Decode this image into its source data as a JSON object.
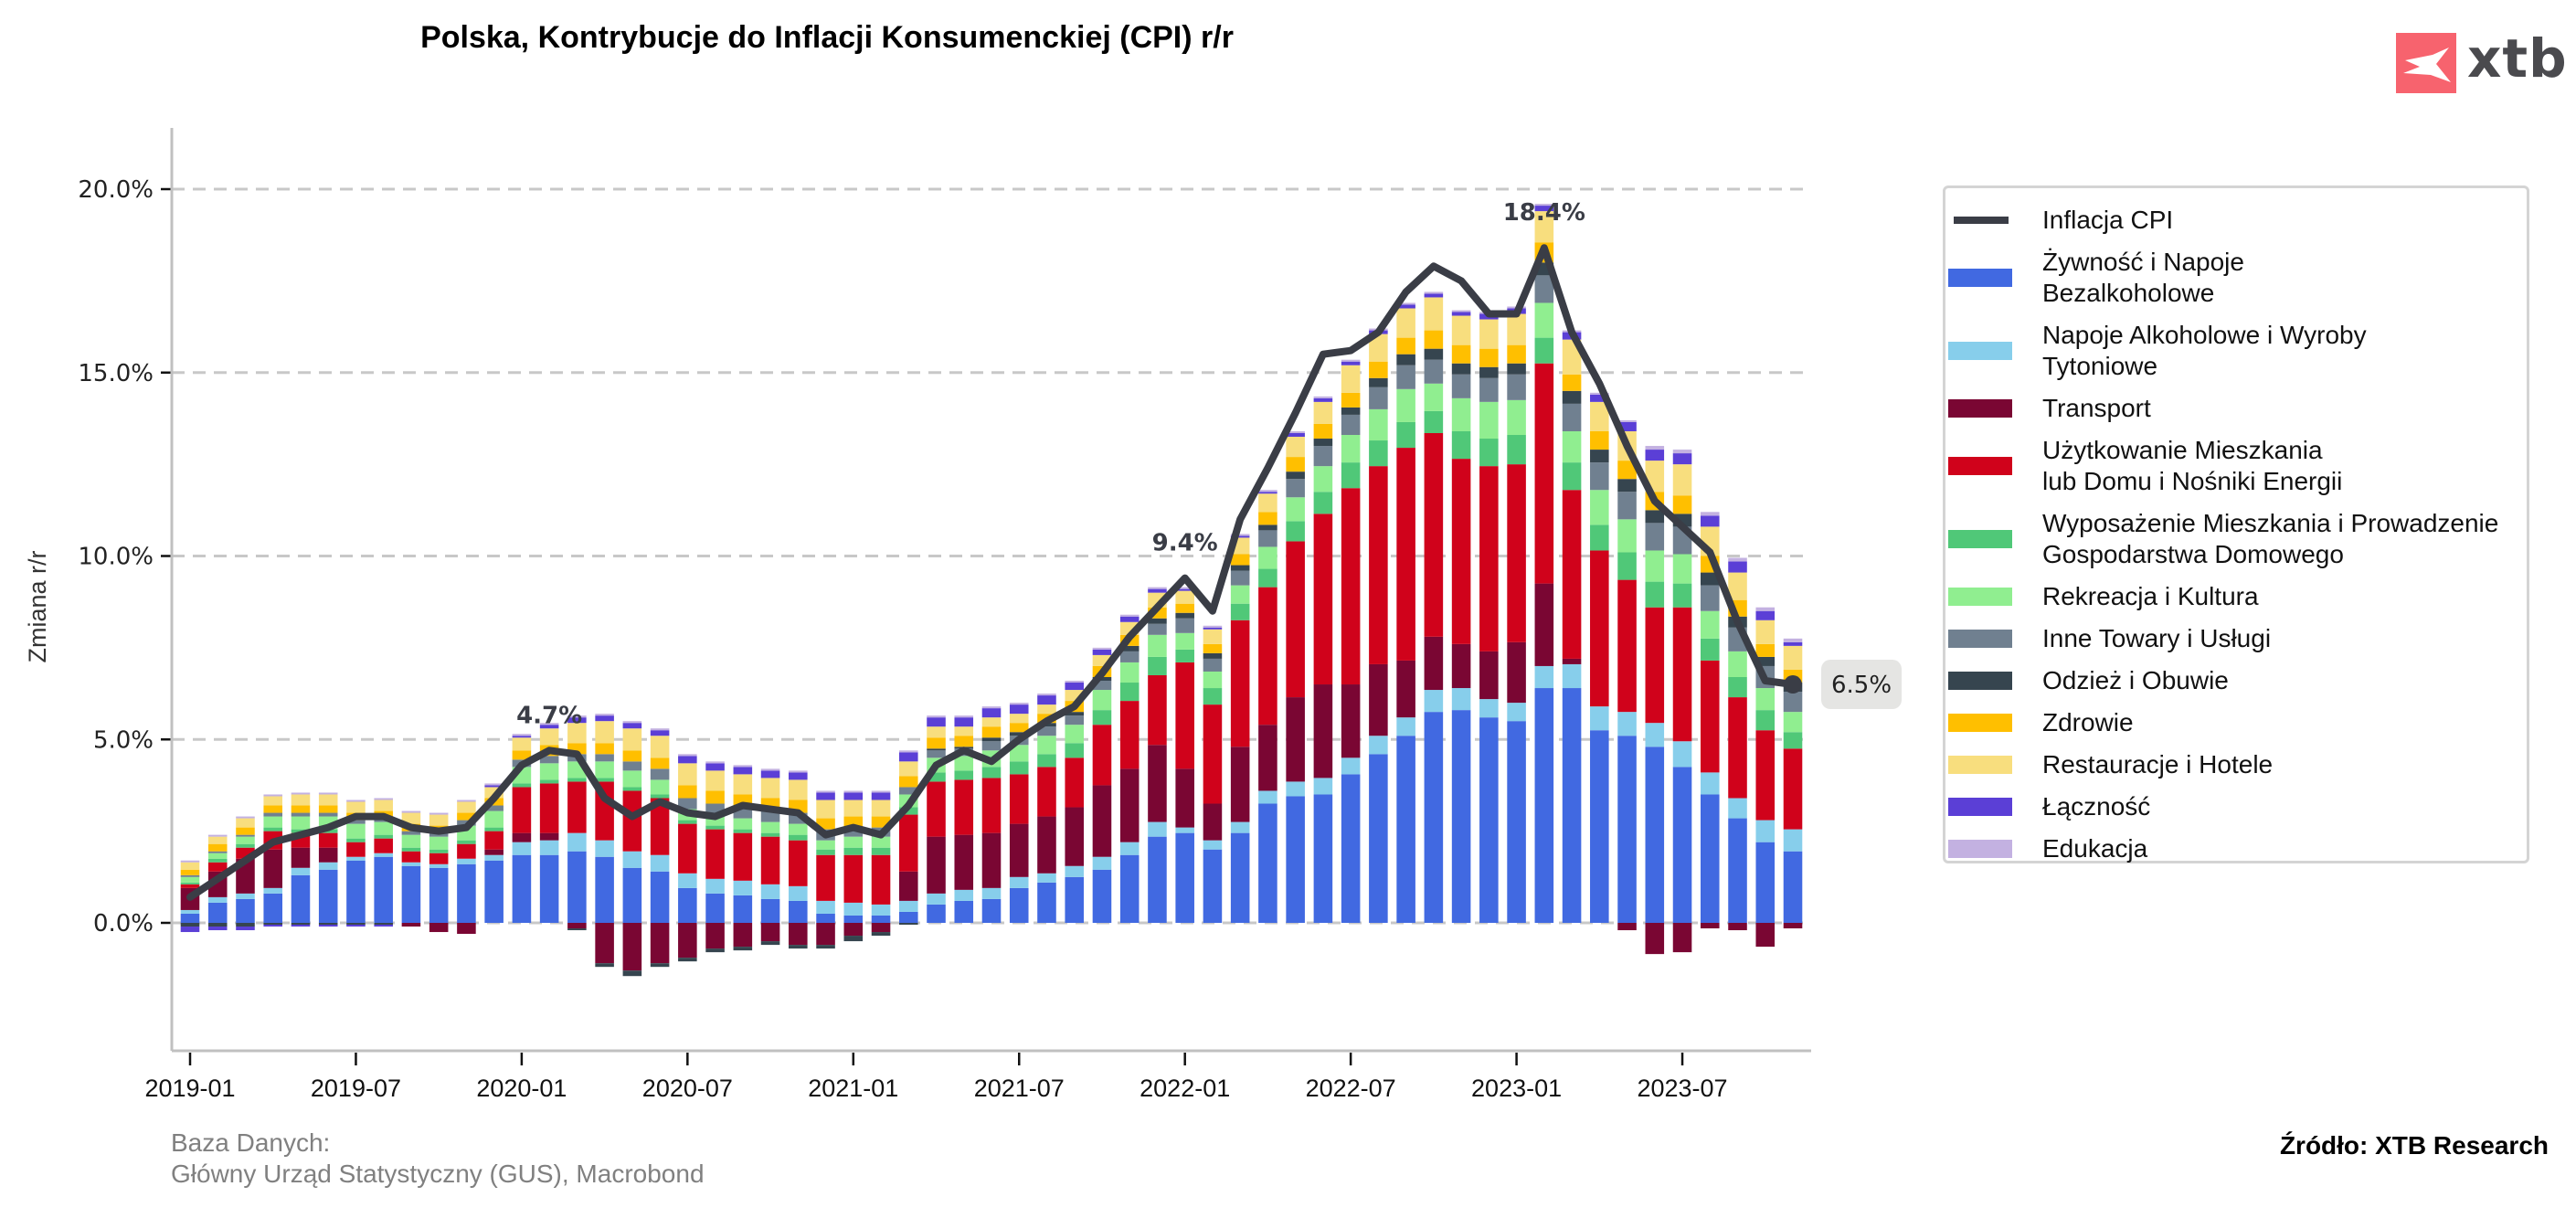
{
  "header": {
    "title": "Polska, Kontrybucje do Inflacji Konsumenckiej (CPI) r/r",
    "logo_text": "xtb"
  },
  "footer": {
    "database_label": "Baza Danych:",
    "database_value": "Główny Urząd Statystyczny (GUS), Macrobond",
    "source": "Źródło: XTB Research"
  },
  "chart_data": {
    "type": "bar",
    "stacked": true,
    "title": "Polska, Kontrybucje do Inflacji Konsumenckiej (CPI) r/r",
    "xlabel": "",
    "ylabel": "Zmiana r/r",
    "ylim": [
      -3.5,
      21.5
    ],
    "yticks": [
      0,
      5,
      10,
      15,
      20
    ],
    "ytick_labels": [
      "0.0%",
      "5.0%",
      "10.0%",
      "15.0%",
      "20.0%"
    ],
    "xtick_labels": [
      "2019-01",
      "2019-07",
      "2020-01",
      "2020-07",
      "2021-01",
      "2021-07",
      "2022-01",
      "2022-07",
      "2023-01",
      "2023-07"
    ],
    "xtick_index": [
      0,
      6,
      12,
      18,
      24,
      30,
      36,
      42,
      48,
      54
    ],
    "grid": "horizontal dashed",
    "legend_position": "right",
    "categories": [
      "2019-01",
      "2019-02",
      "2019-03",
      "2019-04",
      "2019-05",
      "2019-06",
      "2019-07",
      "2019-08",
      "2019-09",
      "2019-10",
      "2019-11",
      "2019-12",
      "2020-01",
      "2020-02",
      "2020-03",
      "2020-04",
      "2020-05",
      "2020-06",
      "2020-07",
      "2020-08",
      "2020-09",
      "2020-10",
      "2020-11",
      "2020-12",
      "2021-01",
      "2021-02",
      "2021-03",
      "2021-04",
      "2021-05",
      "2021-06",
      "2021-07",
      "2021-08",
      "2021-09",
      "2021-10",
      "2021-11",
      "2021-12",
      "2022-01",
      "2022-02",
      "2022-03",
      "2022-04",
      "2022-05",
      "2022-06",
      "2022-07",
      "2022-08",
      "2022-09",
      "2022-10",
      "2022-11",
      "2022-12",
      "2023-01",
      "2023-02",
      "2023-03",
      "2023-04",
      "2023-05",
      "2023-06",
      "2023-07",
      "2023-08",
      "2023-09",
      "2023-10",
      "2023-11"
    ],
    "line": {
      "name": "Inflacja CPI",
      "color": "#3a3d46",
      "values": [
        0.7,
        1.2,
        1.7,
        2.2,
        2.4,
        2.6,
        2.9,
        2.9,
        2.6,
        2.5,
        2.6,
        3.4,
        4.3,
        4.7,
        4.6,
        3.4,
        2.9,
        3.3,
        3.0,
        2.9,
        3.2,
        3.1,
        3.0,
        2.4,
        2.6,
        2.4,
        3.2,
        4.3,
        4.7,
        4.4,
        5.0,
        5.5,
        5.9,
        6.8,
        7.8,
        8.6,
        9.4,
        8.5,
        11.0,
        12.4,
        13.9,
        15.5,
        15.6,
        16.1,
        17.2,
        17.9,
        17.5,
        16.6,
        16.6,
        18.4,
        16.1,
        14.7,
        13.0,
        11.5,
        10.8,
        10.1,
        8.2,
        6.6,
        6.5
      ]
    },
    "annotations": [
      {
        "index": 13,
        "text": "4.7%"
      },
      {
        "index": 36,
        "text": "9.4%"
      },
      {
        "index": 49,
        "text": "18.4%"
      }
    ],
    "last_value_label": "6.5%",
    "series": [
      {
        "name": "Żywność i Napoje\nBezalkoholowe",
        "color": "#4169e1",
        "values": [
          0.25,
          0.55,
          0.65,
          0.8,
          1.3,
          1.45,
          1.7,
          1.8,
          1.55,
          1.5,
          1.6,
          1.7,
          1.85,
          1.85,
          1.95,
          1.8,
          1.5,
          1.4,
          0.95,
          0.8,
          0.75,
          0.65,
          0.6,
          0.25,
          0.2,
          0.2,
          0.3,
          0.5,
          0.6,
          0.65,
          0.95,
          1.1,
          1.25,
          1.45,
          1.85,
          2.35,
          2.45,
          2.0,
          2.45,
          3.25,
          3.45,
          3.5,
          4.05,
          4.6,
          5.1,
          5.75,
          5.8,
          5.6,
          5.5,
          6.4,
          6.4,
          5.25,
          5.1,
          4.8,
          4.25,
          3.5,
          2.85,
          2.2,
          1.95
        ]
      },
      {
        "name": "Napoje Alkoholowe i Wyroby\nTytoniowe",
        "color": "#87ceeb",
        "values": [
          0.1,
          0.15,
          0.15,
          0.15,
          0.2,
          0.2,
          0.1,
          0.1,
          0.1,
          0.1,
          0.15,
          0.15,
          0.35,
          0.4,
          0.5,
          0.45,
          0.45,
          0.45,
          0.4,
          0.4,
          0.4,
          0.4,
          0.4,
          0.35,
          0.35,
          0.3,
          0.3,
          0.3,
          0.3,
          0.3,
          0.3,
          0.25,
          0.3,
          0.35,
          0.35,
          0.4,
          0.15,
          0.25,
          0.3,
          0.35,
          0.4,
          0.45,
          0.45,
          0.5,
          0.5,
          0.6,
          0.6,
          0.5,
          0.5,
          0.6,
          0.65,
          0.65,
          0.65,
          0.65,
          0.7,
          0.6,
          0.55,
          0.6,
          0.6
        ]
      },
      {
        "name": "Transport",
        "color": "#7a0633",
        "values": [
          0.6,
          0.7,
          0.95,
          1.05,
          0.55,
          0.4,
          0.0,
          0.0,
          -0.1,
          -0.25,
          -0.3,
          0.15,
          0.25,
          0.2,
          -0.15,
          -1.1,
          -1.3,
          -1.1,
          -0.95,
          -0.7,
          -0.65,
          -0.5,
          -0.6,
          -0.6,
          -0.35,
          -0.25,
          0.8,
          1.55,
          1.5,
          1.5,
          1.45,
          1.55,
          1.6,
          1.95,
          2.0,
          2.1,
          1.6,
          1.0,
          2.05,
          1.8,
          2.3,
          2.55,
          2.0,
          1.95,
          1.55,
          1.45,
          1.2,
          1.3,
          1.65,
          2.25,
          0.15,
          0.0,
          -0.2,
          -0.85,
          -0.8,
          -0.15,
          -0.2,
          -0.65,
          -0.15
        ]
      },
      {
        "name": "Użytkowanie Mieszkania\nlub Domu i Nośniki Energii",
        "color": "#d0021b",
        "values": [
          0.1,
          0.25,
          0.3,
          0.5,
          0.4,
          0.4,
          0.4,
          0.4,
          0.3,
          0.3,
          0.4,
          0.5,
          1.25,
          1.35,
          1.4,
          1.6,
          1.65,
          1.55,
          1.35,
          1.35,
          1.3,
          1.3,
          1.25,
          1.25,
          1.3,
          1.35,
          1.55,
          1.5,
          1.5,
          1.5,
          1.35,
          1.35,
          1.35,
          1.65,
          1.85,
          1.9,
          2.9,
          2.7,
          3.45,
          3.75,
          4.25,
          4.65,
          5.35,
          5.4,
          5.8,
          5.55,
          5.05,
          5.05,
          4.85,
          6.0,
          4.6,
          4.25,
          3.6,
          3.15,
          3.65,
          3.05,
          2.75,
          2.45,
          2.2
        ]
      },
      {
        "name": "Wyposażenie Mieszkania i Prowadzenie\nGospodarstwa Domowego",
        "color": "#50c878",
        "values": [
          0.05,
          0.1,
          0.1,
          0.1,
          0.1,
          0.1,
          0.1,
          0.1,
          0.1,
          0.1,
          0.1,
          0.1,
          0.1,
          0.1,
          0.1,
          0.1,
          0.1,
          0.1,
          0.1,
          0.1,
          0.1,
          0.1,
          0.15,
          0.15,
          0.2,
          0.2,
          0.2,
          0.25,
          0.25,
          0.3,
          0.35,
          0.35,
          0.4,
          0.4,
          0.5,
          0.5,
          0.35,
          0.45,
          0.45,
          0.5,
          0.55,
          0.6,
          0.7,
          0.7,
          0.7,
          0.6,
          0.75,
          0.75,
          0.8,
          0.7,
          0.75,
          0.7,
          0.75,
          0.7,
          0.65,
          0.6,
          0.55,
          0.55,
          0.45
        ]
      },
      {
        "name": "Rekreacja i Kultura",
        "color": "#90ee90",
        "values": [
          0.15,
          0.15,
          0.2,
          0.3,
          0.35,
          0.35,
          0.4,
          0.35,
          0.35,
          0.35,
          0.4,
          0.45,
          0.45,
          0.45,
          0.45,
          0.45,
          0.45,
          0.4,
          0.3,
          0.3,
          0.3,
          0.3,
          0.3,
          0.25,
          0.3,
          0.3,
          0.35,
          0.4,
          0.4,
          0.45,
          0.45,
          0.5,
          0.5,
          0.55,
          0.55,
          0.6,
          0.45,
          0.45,
          0.5,
          0.6,
          0.65,
          0.7,
          0.75,
          0.85,
          0.9,
          0.75,
          0.9,
          1.0,
          0.95,
          0.95,
          0.85,
          0.95,
          0.9,
          0.85,
          0.8,
          0.75,
          0.7,
          0.6,
          0.55
        ]
      },
      {
        "name": "Inne Towary i Usługi",
        "color": "#708090",
        "values": [
          0.05,
          0.05,
          0.05,
          0.1,
          0.1,
          0.1,
          0.1,
          0.1,
          0.1,
          0.1,
          0.15,
          0.15,
          0.2,
          0.2,
          0.2,
          0.2,
          0.25,
          0.3,
          0.3,
          0.3,
          0.3,
          0.3,
          0.3,
          0.3,
          0.25,
          0.25,
          0.2,
          0.2,
          0.2,
          0.25,
          0.25,
          0.25,
          0.25,
          0.25,
          0.3,
          0.3,
          0.4,
          0.35,
          0.4,
          0.45,
          0.5,
          0.55,
          0.55,
          0.6,
          0.65,
          0.65,
          0.65,
          0.65,
          0.7,
          0.75,
          0.75,
          0.75,
          0.75,
          0.75,
          0.75,
          0.7,
          0.65,
          0.6,
          0.55
        ]
      },
      {
        "name": "Odzież i Obuwie",
        "color": "#36454f",
        "values": [
          -0.1,
          -0.1,
          -0.1,
          -0.05,
          -0.05,
          -0.05,
          -0.05,
          -0.05,
          0.0,
          0.0,
          0.0,
          0.0,
          0.0,
          0.0,
          -0.05,
          -0.1,
          -0.15,
          -0.1,
          -0.1,
          -0.1,
          -0.1,
          -0.1,
          -0.1,
          -0.1,
          -0.15,
          -0.1,
          -0.05,
          0.05,
          0.05,
          0.1,
          0.1,
          0.1,
          0.1,
          0.1,
          0.15,
          0.15,
          0.15,
          0.15,
          0.15,
          0.15,
          0.2,
          0.2,
          0.2,
          0.25,
          0.3,
          0.3,
          0.3,
          0.3,
          0.3,
          0.35,
          0.35,
          0.35,
          0.35,
          0.35,
          0.35,
          0.35,
          0.3,
          0.25,
          0.25
        ]
      },
      {
        "name": "Zdrowie",
        "color": "#ffbf00",
        "values": [
          0.15,
          0.2,
          0.2,
          0.2,
          0.2,
          0.2,
          0.2,
          0.2,
          0.2,
          0.2,
          0.2,
          0.2,
          0.25,
          0.3,
          0.3,
          0.3,
          0.3,
          0.3,
          0.35,
          0.35,
          0.35,
          0.35,
          0.35,
          0.3,
          0.3,
          0.3,
          0.3,
          0.3,
          0.3,
          0.3,
          0.25,
          0.25,
          0.3,
          0.3,
          0.3,
          0.3,
          0.25,
          0.25,
          0.3,
          0.35,
          0.4,
          0.4,
          0.4,
          0.45,
          0.45,
          0.5,
          0.5,
          0.5,
          0.5,
          0.55,
          0.45,
          0.5,
          0.5,
          0.5,
          0.5,
          0.45,
          0.45,
          0.35,
          0.35
        ]
      },
      {
        "name": "Restauracje i Hotele",
        "color": "#f8de7e",
        "values": [
          0.2,
          0.2,
          0.25,
          0.25,
          0.3,
          0.3,
          0.3,
          0.3,
          0.3,
          0.3,
          0.3,
          0.3,
          0.35,
          0.45,
          0.55,
          0.6,
          0.6,
          0.6,
          0.6,
          0.55,
          0.55,
          0.55,
          0.55,
          0.5,
          0.45,
          0.45,
          0.4,
          0.3,
          0.25,
          0.25,
          0.25,
          0.25,
          0.3,
          0.3,
          0.35,
          0.4,
          0.35,
          0.4,
          0.45,
          0.5,
          0.55,
          0.6,
          0.75,
          0.75,
          0.8,
          0.9,
          0.8,
          0.8,
          0.85,
          0.85,
          0.95,
          0.8,
          0.8,
          0.85,
          0.85,
          0.8,
          0.75,
          0.65,
          0.65
        ]
      },
      {
        "name": "Łączność",
        "color": "#5b3fd6",
        "values": [
          -0.15,
          -0.1,
          -0.1,
          -0.05,
          -0.05,
          -0.05,
          -0.05,
          -0.05,
          0.0,
          0.0,
          0.0,
          0.05,
          0.05,
          0.1,
          0.15,
          0.15,
          0.15,
          0.15,
          0.2,
          0.2,
          0.2,
          0.2,
          0.2,
          0.2,
          0.2,
          0.2,
          0.25,
          0.25,
          0.25,
          0.25,
          0.25,
          0.25,
          0.2,
          0.15,
          0.15,
          0.1,
          0.05,
          0.05,
          0.05,
          0.05,
          0.1,
          0.1,
          0.1,
          0.1,
          0.1,
          0.1,
          0.1,
          0.15,
          0.15,
          0.15,
          0.2,
          0.2,
          0.25,
          0.3,
          0.3,
          0.3,
          0.3,
          0.25,
          0.1
        ]
      },
      {
        "name": "Edukacja",
        "color": "#c3b1e1",
        "values": [
          0.05,
          0.05,
          0.05,
          0.05,
          0.05,
          0.05,
          0.05,
          0.05,
          0.05,
          0.05,
          0.05,
          0.05,
          0.05,
          0.05,
          0.05,
          0.05,
          0.05,
          0.05,
          0.05,
          0.05,
          0.05,
          0.05,
          0.05,
          0.05,
          0.05,
          0.05,
          0.05,
          0.05,
          0.05,
          0.05,
          0.05,
          0.05,
          0.05,
          0.05,
          0.05,
          0.05,
          0.05,
          0.05,
          0.05,
          0.05,
          0.05,
          0.05,
          0.05,
          0.05,
          0.05,
          0.05,
          0.05,
          0.05,
          0.05,
          0.05,
          0.05,
          0.05,
          0.05,
          0.1,
          0.1,
          0.1,
          0.1,
          0.1,
          0.1
        ]
      }
    ]
  }
}
